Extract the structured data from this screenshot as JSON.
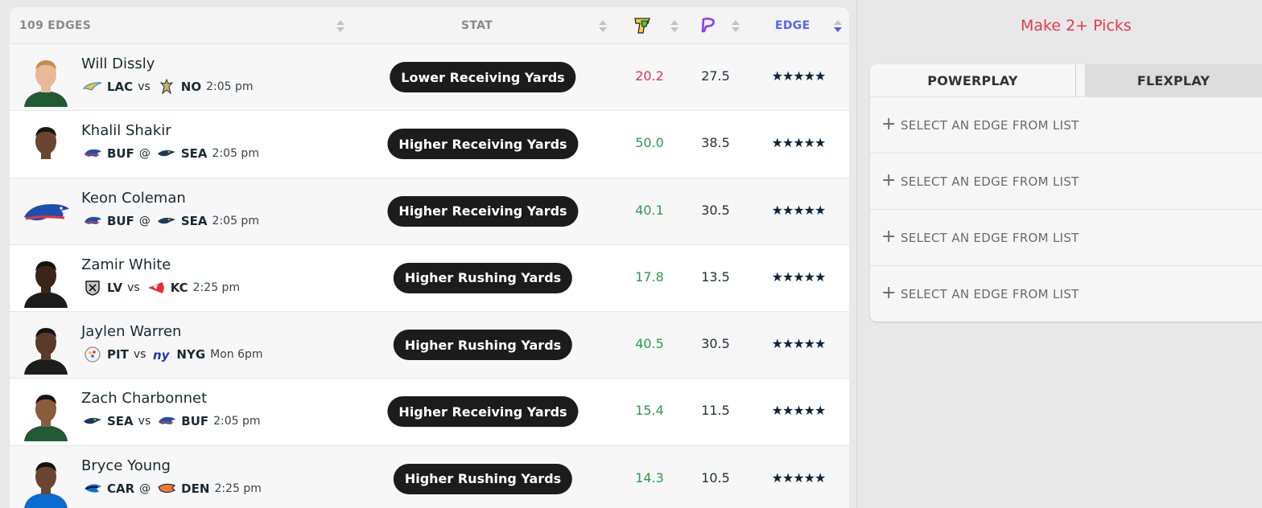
{
  "table": {
    "headers": {
      "edges_count": "109 EDGES",
      "stat": "STAT",
      "edge": "EDGE",
      "underdog_icon": "underdog-logo",
      "prizepicks_icon": "prizepicks-logo"
    },
    "rows": [
      {
        "name": "Will Dissly",
        "team1": "LAC",
        "sep": "vs",
        "team2": "NO",
        "time": "2:05 pm",
        "stat": "Lower Receiving Yards",
        "ud_value": "20.2",
        "ud_color": "red",
        "pp_value": "27.5",
        "stars": "★★★★★",
        "avatar": "player-headshot"
      },
      {
        "name": "Khalil Shakir",
        "team1": "BUF",
        "sep": "@",
        "team2": "SEA",
        "time": "2:05 pm",
        "stat": "Higher Receiving Yards",
        "ud_value": "50.0",
        "ud_color": "green",
        "pp_value": "38.5",
        "stars": "★★★★★",
        "avatar": "player-headshot"
      },
      {
        "name": "Keon Coleman",
        "team1": "BUF",
        "sep": "@",
        "team2": "SEA",
        "time": "2:05 pm",
        "stat": "Higher Receiving Yards",
        "ud_value": "40.1",
        "ud_color": "green",
        "pp_value": "30.5",
        "stars": "★★★★★",
        "avatar": "bills-team-logo"
      },
      {
        "name": "Zamir White",
        "team1": "LV",
        "sep": "vs",
        "team2": "KC",
        "time": "2:25 pm",
        "stat": "Higher Rushing Yards",
        "ud_value": "17.8",
        "ud_color": "green",
        "pp_value": "13.5",
        "stars": "★★★★★",
        "avatar": "player-headshot"
      },
      {
        "name": "Jaylen Warren",
        "team1": "PIT",
        "sep": "vs",
        "team2": "NYG",
        "time": "Mon 6pm",
        "stat": "Higher Rushing Yards",
        "ud_value": "40.5",
        "ud_color": "green",
        "pp_value": "30.5",
        "stars": "★★★★★",
        "avatar": "player-headshot"
      },
      {
        "name": "Zach Charbonnet",
        "team1": "SEA",
        "sep": "vs",
        "team2": "BUF",
        "time": "2:05 pm",
        "stat": "Higher Receiving Yards",
        "ud_value": "15.4",
        "ud_color": "green",
        "pp_value": "11.5",
        "stars": "★★★★★",
        "avatar": "player-headshot"
      },
      {
        "name": "Bryce Young",
        "team1": "CAR",
        "sep": "@",
        "team2": "DEN",
        "time": "2:25 pm",
        "stat": "Higher Rushing Yards",
        "ud_value": "14.3",
        "ud_color": "green",
        "pp_value": "10.5",
        "stars": "★★★★★",
        "avatar": "player-headshot"
      }
    ]
  },
  "picks": {
    "title": "Make 2+ Picks",
    "tabs": [
      "POWERPLAY",
      "FLEXPLAY"
    ],
    "slot_label": "SELECT AN EDGE FROM LIST",
    "slots": [
      "SELECT AN EDGE FROM LIST",
      "SELECT AN EDGE FROM LIST",
      "SELECT AN EDGE FROM LIST",
      "SELECT AN EDGE FROM LIST"
    ]
  },
  "colors": {
    "accent_blue": "#4a60f5",
    "green": "#2e9a4c",
    "red": "#e0354f",
    "pill": "#1c1c1c"
  }
}
